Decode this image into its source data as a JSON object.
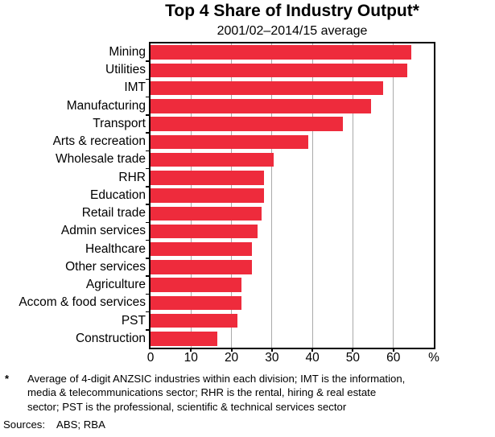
{
  "chart_data": {
    "type": "bar",
    "orientation": "horizontal",
    "title": "Top 4 Share of Industry Output*",
    "subtitle": "2001/02–2014/15 average",
    "categories": [
      "Mining",
      "Utilities",
      "IMT",
      "Manufacturing",
      "Transport",
      "Arts & recreation",
      "Wholesale trade",
      "RHR",
      "Education",
      "Retail trade",
      "Admin services",
      "Healthcare",
      "Other services",
      "Agriculture",
      "Accom & food services",
      "PST",
      "Construction"
    ],
    "values": [
      64.5,
      63.5,
      57.5,
      54.5,
      47.5,
      39,
      30.5,
      28,
      28,
      27.5,
      26.5,
      25,
      25,
      22.5,
      22.5,
      21.5,
      16.5
    ],
    "xlim": [
      0,
      70
    ],
    "xticks": [
      0,
      10,
      20,
      30,
      40,
      50,
      60
    ],
    "unit_label": "%",
    "grid": true,
    "legend": "none",
    "bar_color": "#EE2B3C",
    "gridline_color": "#AAAAAA",
    "axis_color": "#000000"
  },
  "footnote": {
    "marker": "*",
    "lines": [
      "Average of 4-digit ANZSIC industries within each division; IMT is the information,",
      "media & telecommunications sector; RHR is the rental, hiring & real estate",
      "sector; PST is the professional, scientific & technical services sector"
    ]
  },
  "sources": {
    "label": "Sources:",
    "value": "ABS; RBA"
  }
}
